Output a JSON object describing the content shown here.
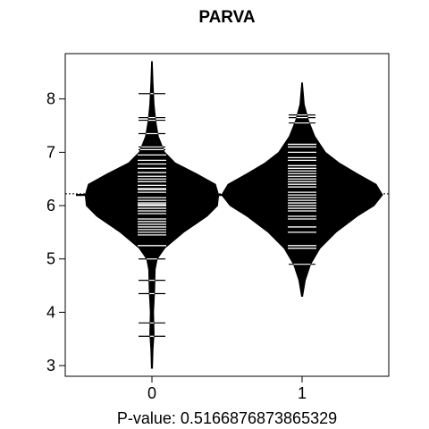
{
  "chart_data": {
    "type": "beanplot",
    "title": "PARVA",
    "xlabel": "P-value: 0.5166876873865329",
    "ylabel": "",
    "ylim": [
      2.8,
      8.85
    ],
    "yticks": [
      3,
      4,
      5,
      6,
      7,
      8
    ],
    "categories": [
      "0",
      "1"
    ],
    "overall_mean": 6.22,
    "colors": {
      "bean": "#000000",
      "lines": "#ffffff",
      "background": "#ffffff"
    },
    "groups": [
      {
        "name": "0",
        "mean": 6.2,
        "density": [
          [
            2.95,
            0.005
          ],
          [
            3.3,
            0.01
          ],
          [
            3.6,
            0.02
          ],
          [
            4.0,
            0.015
          ],
          [
            4.4,
            0.025
          ],
          [
            4.8,
            0.03
          ],
          [
            5.0,
            0.05
          ],
          [
            5.2,
            0.12
          ],
          [
            5.5,
            0.3
          ],
          [
            5.8,
            0.52
          ],
          [
            6.0,
            0.62
          ],
          [
            6.2,
            0.63
          ],
          [
            6.4,
            0.6
          ],
          [
            6.6,
            0.42
          ],
          [
            6.8,
            0.22
          ],
          [
            7.0,
            0.12
          ],
          [
            7.3,
            0.06
          ],
          [
            7.6,
            0.035
          ],
          [
            7.9,
            0.02
          ],
          [
            8.3,
            0.01
          ],
          [
            8.7,
            0.003
          ]
        ],
        "points": [
          3.55,
          3.8,
          4.35,
          4.6,
          5.0,
          5.25,
          5.45,
          5.5,
          5.55,
          5.6,
          5.65,
          5.7,
          5.75,
          5.85,
          5.9,
          5.95,
          6.0,
          6.02,
          6.05,
          6.1,
          6.15,
          6.2,
          6.25,
          6.3,
          6.32,
          6.38,
          6.45,
          6.5,
          6.55,
          6.62,
          6.7,
          6.78,
          6.85,
          6.95,
          7.05,
          7.1,
          7.35,
          7.6,
          7.65,
          8.1
        ]
      },
      {
        "name": "1",
        "mean": 6.3,
        "density": [
          [
            4.3,
            0.005
          ],
          [
            4.6,
            0.03
          ],
          [
            4.9,
            0.08
          ],
          [
            5.2,
            0.17
          ],
          [
            5.5,
            0.32
          ],
          [
            5.8,
            0.52
          ],
          [
            6.0,
            0.68
          ],
          [
            6.2,
            0.76
          ],
          [
            6.4,
            0.7
          ],
          [
            6.6,
            0.52
          ],
          [
            6.8,
            0.35
          ],
          [
            7.0,
            0.22
          ],
          [
            7.3,
            0.12
          ],
          [
            7.6,
            0.06
          ],
          [
            7.9,
            0.02
          ],
          [
            8.3,
            0.003
          ]
        ],
        "points": [
          4.9,
          5.2,
          5.25,
          5.5,
          5.6,
          5.75,
          5.8,
          5.9,
          5.95,
          6.0,
          6.05,
          6.1,
          6.15,
          6.2,
          6.25,
          6.3,
          6.35,
          6.4,
          6.45,
          6.5,
          6.55,
          6.6,
          6.65,
          6.7,
          6.75,
          6.85,
          6.9,
          7.0,
          7.1,
          7.15,
          7.55,
          7.65,
          7.7
        ]
      }
    ]
  }
}
